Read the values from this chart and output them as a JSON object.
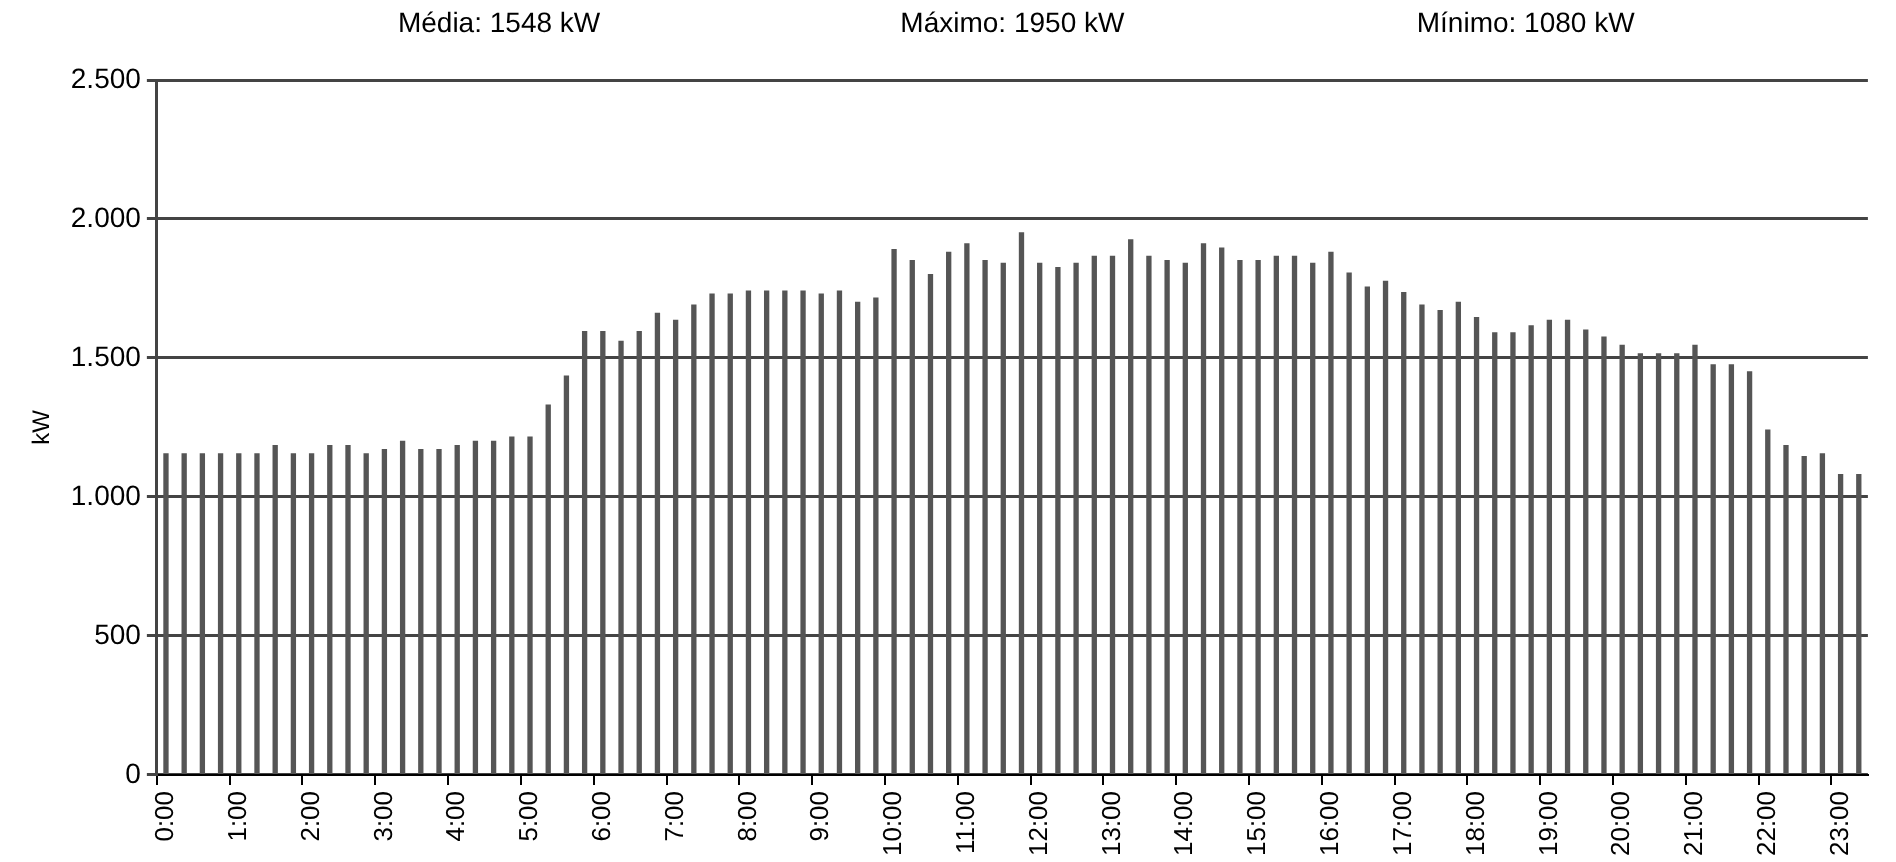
{
  "chart_data": {
    "type": "bar",
    "ylabel": "kW",
    "annotations": [
      "Média: 1548 kW",
      "Máximo: 1950 kW",
      "Mínimo: 1080 kW"
    ],
    "categories": [
      "0:00",
      null,
      null,
      null,
      "1:00",
      null,
      null,
      null,
      "2:00",
      null,
      null,
      null,
      "3:00",
      null,
      null,
      null,
      "4:00",
      null,
      null,
      null,
      "5:00",
      null,
      null,
      null,
      "6:00",
      null,
      null,
      null,
      "7:00",
      null,
      null,
      null,
      "8:00",
      null,
      null,
      null,
      "9:00",
      null,
      null,
      null,
      "10:00",
      null,
      null,
      null,
      "11:00",
      null,
      null,
      null,
      "12:00",
      null,
      null,
      null,
      "13:00",
      null,
      null,
      null,
      "14:00",
      null,
      null,
      null,
      "15:00",
      null,
      null,
      null,
      "16:00",
      null,
      null,
      null,
      "17:00",
      null,
      null,
      null,
      "18:00",
      null,
      null,
      null,
      "19:00",
      null,
      null,
      null,
      "20:00",
      null,
      null,
      null,
      "21:00",
      null,
      null,
      null,
      "22:00",
      null,
      null,
      null,
      "23:00",
      null
    ],
    "values": [
      1155,
      1155,
      1155,
      1155,
      1155,
      1155,
      1185,
      1155,
      1155,
      1185,
      1185,
      1155,
      1170,
      1200,
      1170,
      1170,
      1185,
      1200,
      1200,
      1215,
      1215,
      1330,
      1435,
      1595,
      1595,
      1560,
      1595,
      1660,
      1635,
      1690,
      1730,
      1730,
      1740,
      1740,
      1740,
      1740,
      1730,
      1740,
      1700,
      1715,
      1890,
      1850,
      1800,
      1880,
      1910,
      1850,
      1840,
      1950,
      1840,
      1825,
      1840,
      1865,
      1865,
      1925,
      1865,
      1850,
      1840,
      1910,
      1895,
      1850,
      1850,
      1865,
      1865,
      1840,
      1880,
      1805,
      1755,
      1775,
      1735,
      1690,
      1670,
      1700,
      1645,
      1590,
      1590,
      1615,
      1635,
      1635,
      1600,
      1575,
      1545,
      1515,
      1515,
      1515,
      1545,
      1475,
      1475,
      1450,
      1240,
      1185,
      1145,
      1155,
      1080,
      1080
    ],
    "color": "#555555",
    "ylim": [
      0,
      2500
    ],
    "yticks": [
      {
        "value": 0,
        "label": "0"
      },
      {
        "value": 500,
        "label": "500"
      },
      {
        "value": 1000,
        "label": "1.000"
      },
      {
        "value": 1500,
        "label": "1.500"
      },
      {
        "value": 2000,
        "label": "2.000"
      },
      {
        "value": 2500,
        "label": "2.500"
      }
    ],
    "grid": "y"
  }
}
